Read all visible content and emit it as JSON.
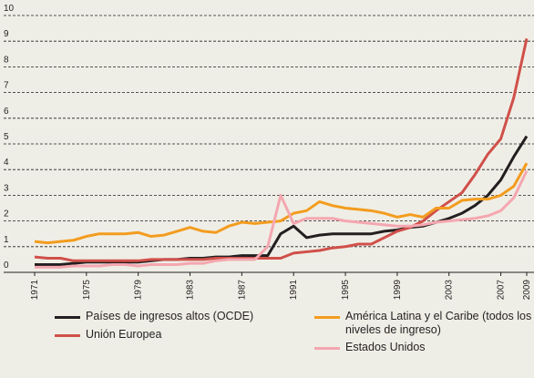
{
  "chart_data": {
    "type": "line",
    "x": [
      1971,
      1972,
      1973,
      1974,
      1975,
      1976,
      1977,
      1978,
      1979,
      1980,
      1981,
      1982,
      1983,
      1984,
      1985,
      1986,
      1987,
      1988,
      1989,
      1990,
      1991,
      1992,
      1993,
      1994,
      1995,
      1996,
      1997,
      1998,
      1999,
      2000,
      2001,
      2002,
      2003,
      2004,
      2005,
      2006,
      2007,
      2008,
      2009
    ],
    "xlim": [
      1971,
      2009
    ],
    "xticks": [
      1971,
      1975,
      1979,
      1983,
      1987,
      1991,
      1995,
      1999,
      2003,
      2007,
      2009
    ],
    "ylim": [
      0,
      10
    ],
    "yticks": [
      0,
      1,
      2,
      3,
      4,
      5,
      6,
      7,
      8,
      9,
      10
    ],
    "grid": true,
    "series": [
      {
        "name": "Países de ingresos altos (OCDE)",
        "color": "#231f20",
        "values": [
          0.3,
          0.3,
          0.3,
          0.35,
          0.4,
          0.4,
          0.4,
          0.4,
          0.4,
          0.45,
          0.5,
          0.5,
          0.55,
          0.55,
          0.6,
          0.6,
          0.65,
          0.65,
          0.65,
          1.5,
          1.8,
          1.35,
          1.45,
          1.5,
          1.5,
          1.5,
          1.5,
          1.6,
          1.65,
          1.75,
          1.8,
          1.95,
          2.1,
          2.3,
          2.6,
          3.0,
          3.6,
          4.5,
          5.3
        ]
      },
      {
        "name": "Unión Europea",
        "color": "#d0504a",
        "values": [
          0.6,
          0.55,
          0.55,
          0.45,
          0.45,
          0.45,
          0.45,
          0.45,
          0.45,
          0.5,
          0.5,
          0.5,
          0.5,
          0.5,
          0.55,
          0.55,
          0.55,
          0.55,
          0.55,
          0.55,
          0.75,
          0.8,
          0.85,
          0.95,
          1.0,
          1.1,
          1.1,
          1.35,
          1.6,
          1.75,
          2.0,
          2.4,
          2.75,
          3.1,
          3.8,
          4.6,
          5.2,
          6.8,
          9.1
        ]
      },
      {
        "name": "América Latina y el Caribe (todos los niveles de ingreso)",
        "color": "#f39c1f",
        "values": [
          1.2,
          1.15,
          1.2,
          1.25,
          1.4,
          1.5,
          1.5,
          1.5,
          1.55,
          1.4,
          1.45,
          1.6,
          1.75,
          1.6,
          1.55,
          1.8,
          1.95,
          1.9,
          1.95,
          2.0,
          2.3,
          2.4,
          2.75,
          2.6,
          2.5,
          2.45,
          2.4,
          2.3,
          2.15,
          2.25,
          2.15,
          2.5,
          2.5,
          2.8,
          2.85,
          2.85,
          3.0,
          3.35,
          4.25
        ]
      },
      {
        "name": "Estados Unidos",
        "color": "#f4a7b0",
        "values": [
          0.2,
          0.2,
          0.2,
          0.25,
          0.25,
          0.25,
          0.3,
          0.3,
          0.25,
          0.3,
          0.3,
          0.3,
          0.35,
          0.35,
          0.45,
          0.5,
          0.5,
          0.5,
          1.0,
          3.0,
          1.9,
          2.1,
          2.1,
          2.1,
          2.0,
          1.95,
          1.9,
          1.85,
          1.8,
          1.8,
          1.85,
          1.95,
          2.0,
          2.05,
          2.1,
          2.2,
          2.4,
          2.9,
          3.95
        ]
      }
    ]
  }
}
